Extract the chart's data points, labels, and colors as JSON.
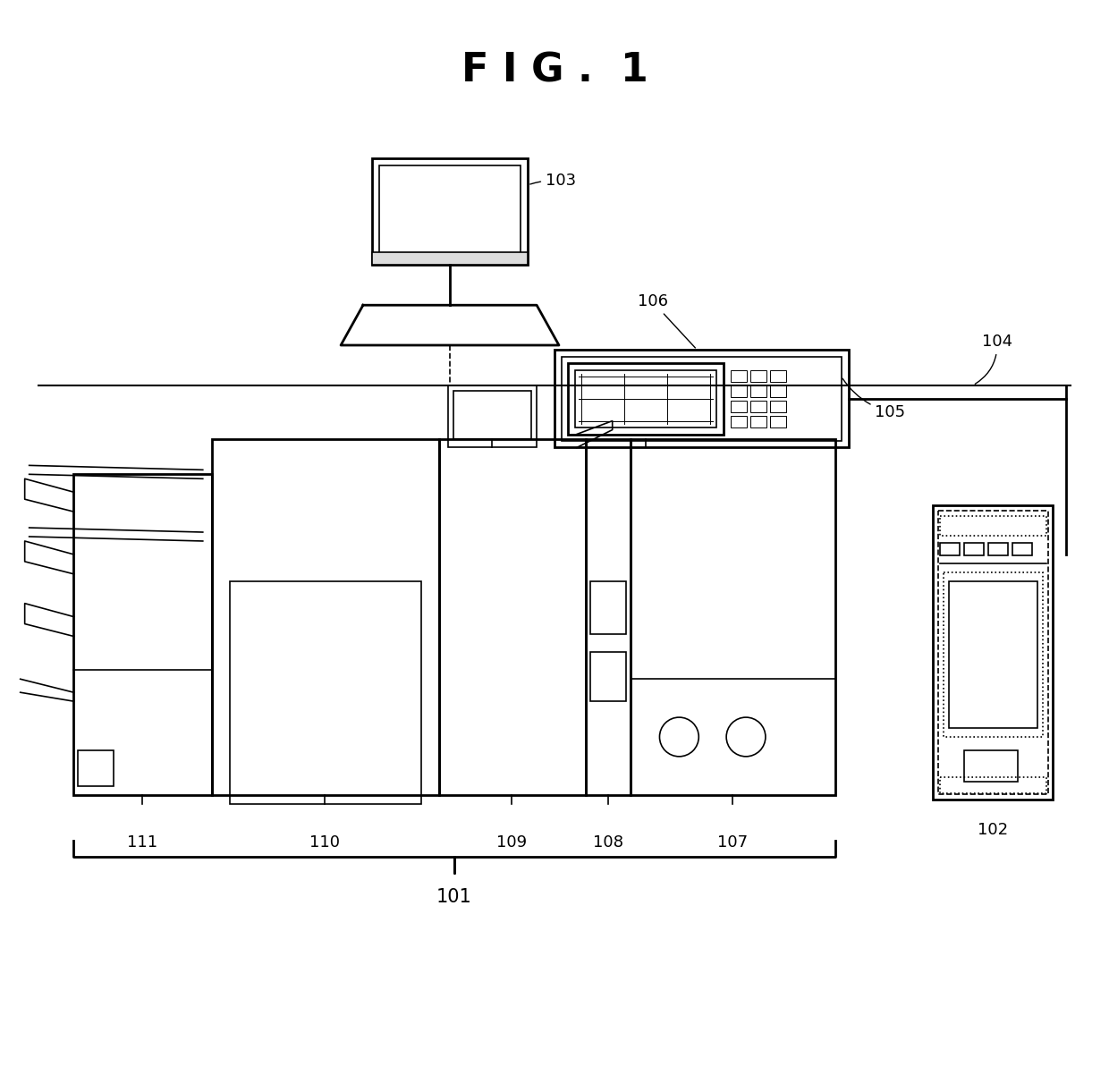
{
  "title": "F I G .  1",
  "bg_color": "#ffffff",
  "line_color": "#000000",
  "fig_width": 12.4,
  "fig_height": 12.02
}
